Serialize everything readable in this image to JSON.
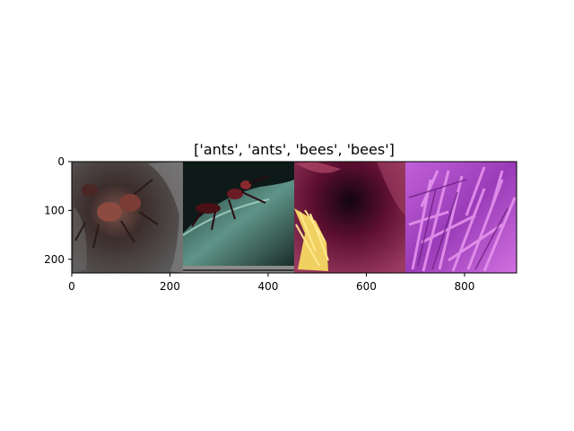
{
  "chart_data": {
    "type": "image_grid",
    "title": "['ants', 'ants', 'bees', 'bees']",
    "xlim": [
      0,
      906
    ],
    "ylim": [
      228,
      0
    ],
    "x_ticks": [
      0,
      200,
      400,
      600,
      800
    ],
    "y_ticks": [
      0,
      100,
      200
    ],
    "panels": [
      {
        "label": "ants",
        "x_range": [
          0,
          226
        ],
        "dominant_color": "#3a3838"
      },
      {
        "label": "ants",
        "x_range": [
          226,
          452
        ],
        "dominant_color": "#2c4f46"
      },
      {
        "label": "bees",
        "x_range": [
          452,
          678
        ],
        "dominant_color": "#5a1030"
      },
      {
        "label": "bees",
        "x_range": [
          678,
          906
        ],
        "dominant_color": "#b050c8"
      }
    ]
  }
}
